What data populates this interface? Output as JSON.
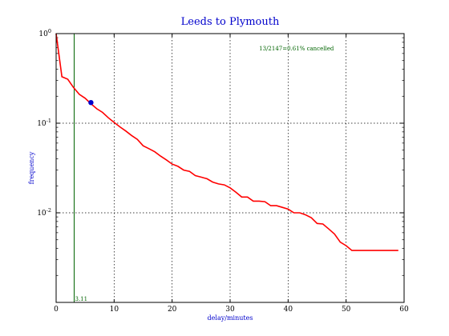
{
  "chart_data": {
    "type": "line",
    "title": "Leeds to Plymouth",
    "xlabel": "delay/minutes",
    "ylabel": "frequency",
    "xlim": [
      0,
      60
    ],
    "ylim": [
      0.001,
      1
    ],
    "yscale": "log",
    "grid": true,
    "x_ticks": [
      0,
      10,
      20,
      30,
      40,
      50,
      60
    ],
    "x_tick_labels": [
      "0",
      "10",
      "20",
      "30",
      "40",
      "50",
      "60"
    ],
    "y_ticks": [
      1,
      0.1,
      0.01
    ],
    "y_tick_labels": [
      {
        "base": "10",
        "exp": "0"
      },
      {
        "base": "10",
        "exp": "-1"
      },
      {
        "base": "10",
        "exp": "-2"
      }
    ],
    "series": [
      {
        "color": "#ff0000",
        "x": [
          0,
          1,
          2,
          3,
          4,
          5,
          6,
          7,
          8,
          9,
          10,
          11,
          12,
          13,
          14,
          15,
          16,
          17,
          18,
          19,
          20,
          21,
          22,
          23,
          24,
          25,
          26,
          27,
          28,
          29,
          30,
          31,
          32,
          33,
          34,
          35,
          36,
          37,
          38,
          39,
          40,
          41,
          42,
          43,
          44,
          45,
          46,
          47,
          48,
          49,
          50,
          51,
          52,
          53,
          54,
          55,
          56,
          57,
          58,
          59
        ],
        "y": [
          1.0,
          0.33,
          0.31,
          0.25,
          0.21,
          0.19,
          0.165,
          0.145,
          0.132,
          0.115,
          0.102,
          0.091,
          0.082,
          0.073,
          0.066,
          0.056,
          0.052,
          0.048,
          0.043,
          0.039,
          0.035,
          0.033,
          0.03,
          0.029,
          0.026,
          0.025,
          0.024,
          0.022,
          0.021,
          0.0205,
          0.019,
          0.017,
          0.015,
          0.015,
          0.0135,
          0.0135,
          0.0133,
          0.012,
          0.012,
          0.0115,
          0.011,
          0.01,
          0.01,
          0.0095,
          0.0088,
          0.0076,
          0.0075,
          0.0066,
          0.0058,
          0.0047,
          0.0043,
          0.0038,
          0.0038,
          0.0038,
          0.0038,
          0.0038,
          0.0038,
          0.0038,
          0.0038,
          0.0038
        ]
      }
    ],
    "marker": {
      "x": 6,
      "y": 0.17,
      "color": "#0000cc"
    },
    "vline": {
      "x": 3.11,
      "label": "3.11",
      "color": "#006400"
    },
    "annotation": {
      "text": "13/2147=0.61% cancelled",
      "color": "#006400",
      "x": 35,
      "y": 0.65
    }
  }
}
